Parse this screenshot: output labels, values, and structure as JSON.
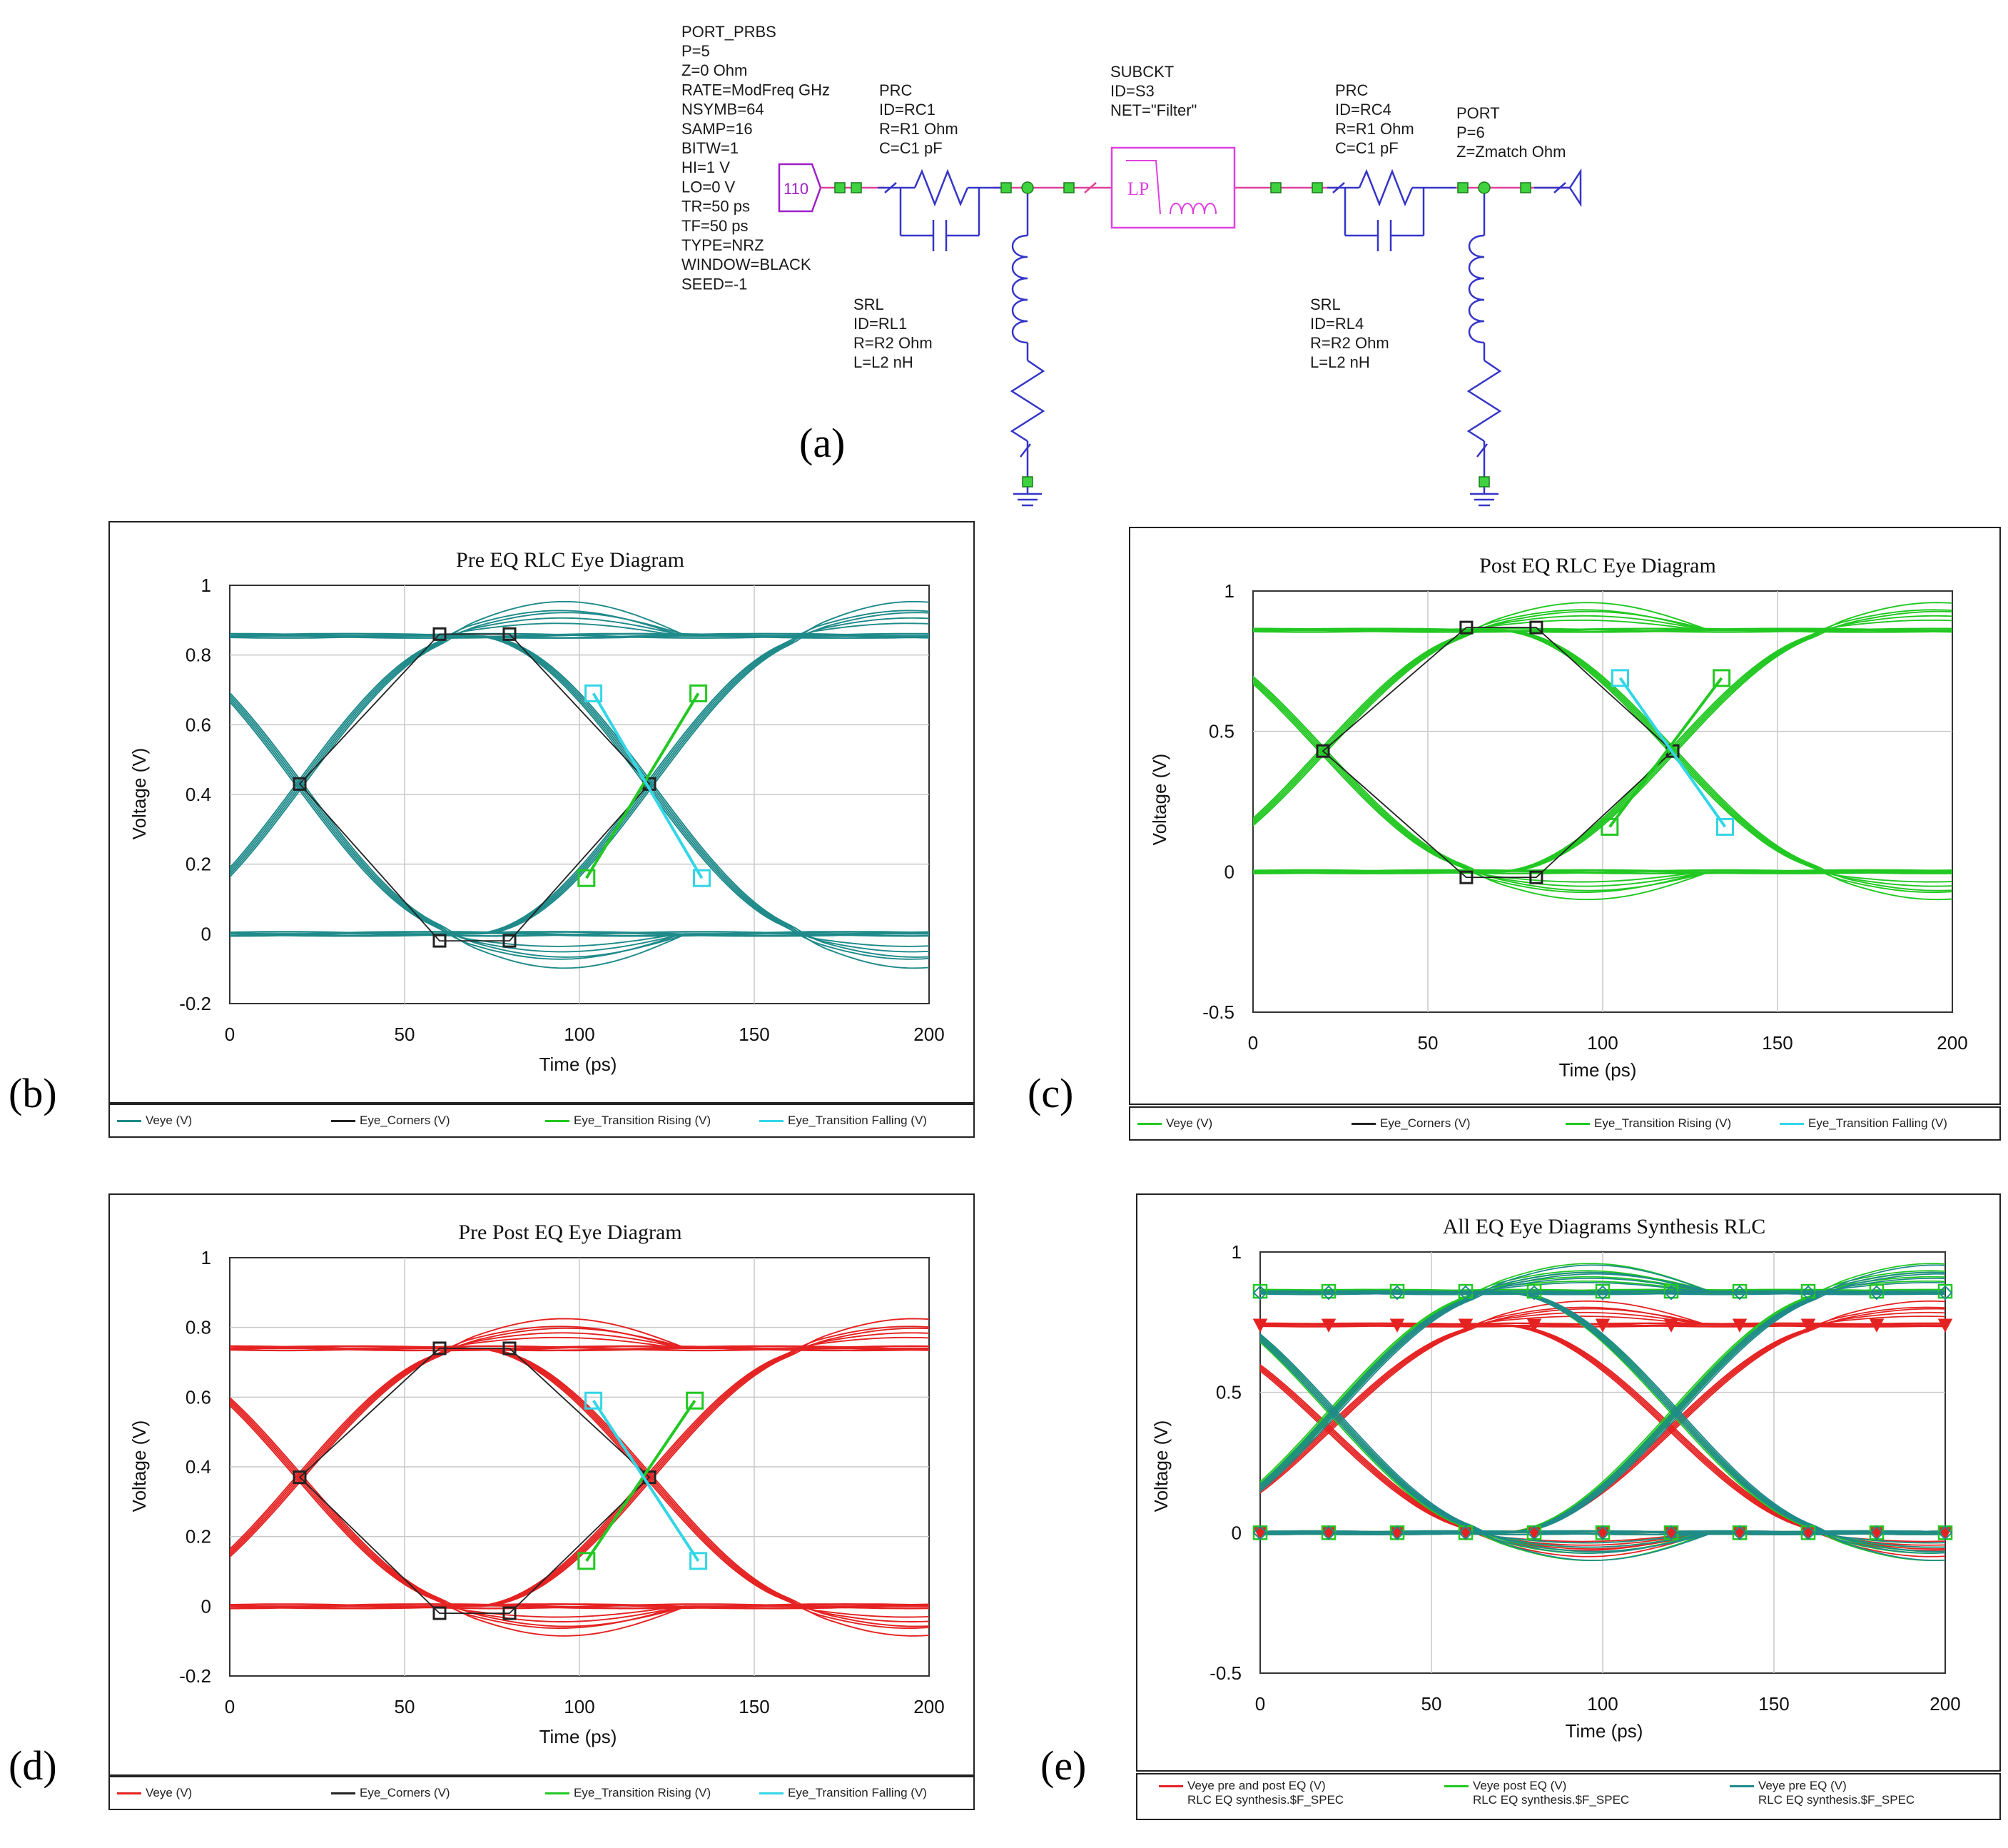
{
  "schematic": {
    "port_prbs": {
      "title": "PORT_PRBS",
      "params": [
        "P=5",
        "Z=0 Ohm",
        "RATE=ModFreq GHz",
        "NSYMB=64",
        "SAMP=16",
        "BITW=1",
        "HI=1 V",
        "LO=0 V",
        "TR=50 ps",
        "TF=50 ps",
        "TYPE=NRZ",
        "WINDOW=BLACK",
        "SEED=-1"
      ],
      "symbol": "110"
    },
    "prc1": {
      "title": "PRC",
      "params": [
        "ID=RC1",
        "R=R1 Ohm",
        "C=C1 pF"
      ]
    },
    "subckt": {
      "title": "SUBCKT",
      "params": [
        "ID=S3",
        "NET=\"Filter\""
      ],
      "symbol": "LP"
    },
    "prc4": {
      "title": "PRC",
      "params": [
        "ID=RC4",
        "R=R1 Ohm",
        "C=C1 pF"
      ]
    },
    "port": {
      "title": "PORT",
      "params": [
        "P=6",
        "Z=Zmatch Ohm"
      ]
    },
    "srl1": {
      "title": "SRL",
      "params": [
        "ID=RL1",
        "R=R2 Ohm",
        "L=L2 nH"
      ]
    },
    "srl4": {
      "title": "SRL",
      "params": [
        "ID=RL4",
        "R=R2 Ohm",
        "L=L2 nH"
      ]
    }
  },
  "labels": {
    "a": "(a)",
    "b": "(b)",
    "c": "(c)",
    "d": "(d)",
    "e": "(e)"
  },
  "axes": {
    "xlabel": "Time (ps)",
    "ylabel": "Voltage (V)"
  },
  "colors": {
    "teal": "#1f8a8a",
    "green": "#22c822",
    "red": "#e52222",
    "cyan": "#33d6e6",
    "black": "#222222"
  },
  "chart_data": [
    {
      "id": "b",
      "type": "line",
      "title": "Pre EQ RLC Eye Diagram",
      "xlim": [
        0,
        200
      ],
      "ylim": [
        -0.2,
        1
      ],
      "xticks": [
        0,
        50,
        100,
        150,
        200
      ],
      "yticks": [
        "1",
        "0.8",
        "0.6",
        "0.4",
        "0.2",
        "0",
        "-0.2"
      ],
      "high": 0.855,
      "low": 0.0,
      "cross_v": 0.43,
      "cross_t": [
        20,
        120
      ],
      "corners": [
        [
          60,
          0.86
        ],
        [
          80,
          0.86
        ],
        [
          60,
          -0.02
        ],
        [
          80,
          -0.02
        ]
      ],
      "rising": [
        [
          102,
          0.16
        ],
        [
          134,
          0.69
        ]
      ],
      "falling": [
        [
          104,
          0.69
        ],
        [
          135,
          0.16
        ]
      ],
      "eye_color": "teal",
      "legend": [
        "Veye (V)",
        "Eye_Corners (V)",
        "Eye_Transition Rising (V)",
        "Eye_Transition Falling (V)"
      ]
    },
    {
      "id": "c",
      "type": "line",
      "title": "Post EQ RLC Eye Diagram",
      "xlim": [
        0,
        200
      ],
      "ylim": [
        -0.5,
        1
      ],
      "xticks": [
        0,
        50,
        100,
        150,
        200
      ],
      "yticks": [
        "1",
        "0.5",
        "0",
        "-0.5"
      ],
      "high": 0.86,
      "low": 0.0,
      "cross_v": 0.43,
      "cross_t": [
        20,
        120
      ],
      "corners": [
        [
          61,
          0.87
        ],
        [
          81,
          0.87
        ],
        [
          61,
          -0.02
        ],
        [
          81,
          -0.02
        ]
      ],
      "rising": [
        [
          102,
          0.16
        ],
        [
          134,
          0.69
        ]
      ],
      "falling": [
        [
          105,
          0.69
        ],
        [
          135,
          0.16
        ]
      ],
      "eye_color": "green",
      "legend": [
        "Veye (V)",
        "Eye_Corners (V)",
        "Eye_Transition Rising (V)",
        "Eye_Transition Falling (V)"
      ]
    },
    {
      "id": "d",
      "type": "line",
      "title": "Pre Post EQ Eye Diagram",
      "xlim": [
        0,
        200
      ],
      "ylim": [
        -0.2,
        1
      ],
      "xticks": [
        0,
        50,
        100,
        150,
        200
      ],
      "yticks": [
        "1",
        "0.8",
        "0.6",
        "0.4",
        "0.2",
        "0",
        "-0.2"
      ],
      "high": 0.74,
      "low": 0.0,
      "cross_v": 0.37,
      "cross_t": [
        20,
        120
      ],
      "corners": [
        [
          60,
          0.74
        ],
        [
          80,
          0.74
        ],
        [
          60,
          -0.02
        ],
        [
          80,
          -0.02
        ]
      ],
      "rising": [
        [
          102,
          0.13
        ],
        [
          133,
          0.59
        ]
      ],
      "falling": [
        [
          104,
          0.59
        ],
        [
          134,
          0.13
        ]
      ],
      "eye_color": "red",
      "legend": [
        "Veye (V)",
        "Eye_Corners (V)",
        "Eye_Transition Rising (V)",
        "Eye_Transition Falling (V)"
      ]
    },
    {
      "id": "e",
      "type": "line",
      "title": "All EQ Eye Diagrams Synthesis RLC",
      "xlim": [
        0,
        200
      ],
      "ylim": [
        -0.5,
        1
      ],
      "xticks": [
        0,
        50,
        100,
        150,
        200
      ],
      "yticks": [
        "1",
        "0.5",
        "0",
        "-0.5"
      ],
      "series": [
        {
          "name": "Veye pre and post EQ (V)",
          "sub": "RLC EQ synthesis.$F_SPEC",
          "color": "red",
          "high": 0.74,
          "low": 0.0,
          "marker": "triangle"
        },
        {
          "name": "Veye post EQ (V)",
          "sub": "RLC EQ synthesis.$F_SPEC",
          "color": "green",
          "high": 0.86,
          "low": 0.0,
          "marker": "square"
        },
        {
          "name": "Veye pre EQ (V)",
          "sub": "RLC EQ synthesis.$F_SPEC",
          "color": "teal",
          "high": 0.855,
          "low": 0.0,
          "marker": "diamond"
        }
      ]
    }
  ]
}
